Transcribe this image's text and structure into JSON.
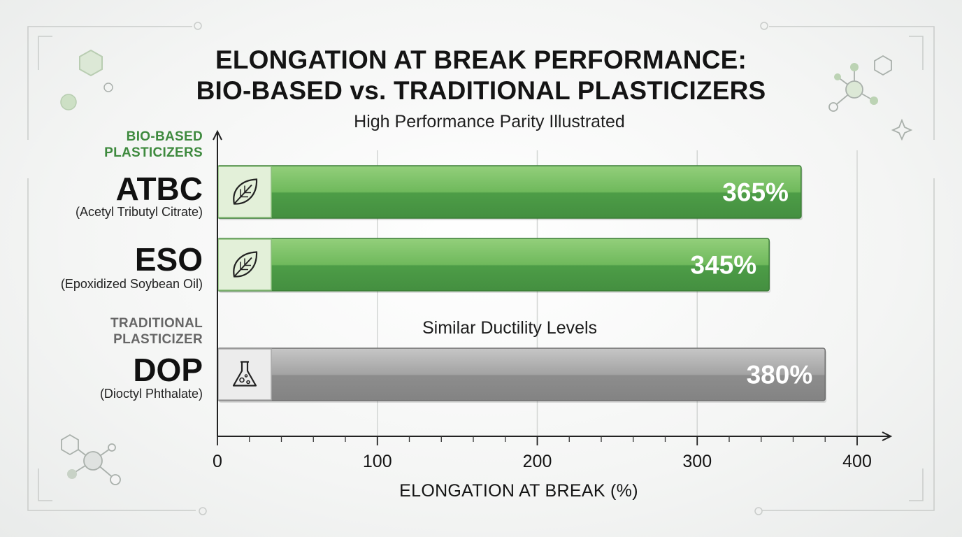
{
  "title_line1": "ELONGATION AT BREAK PERFORMANCE:",
  "title_line2": "BIO-BASED vs. TRADITIONAL PLASTICIZERS",
  "subtitle": "High Performance Parity Illustrated",
  "groups": {
    "bio": "BIO-BASED PLASTICIZERS",
    "traditional": "TRADITIONAL PLASTICIZER"
  },
  "annotation": "Similar Ductility Levels",
  "colors": {
    "bio_bar": "#4e9e48",
    "bio_bar_light": "#8fcd78",
    "trad_bar": "#8a8a8a",
    "trad_bar_light": "#c4c4c4",
    "bio_text": "#3e8a3e",
    "trad_text": "#666666"
  },
  "chart_data": {
    "type": "bar",
    "orientation": "horizontal",
    "title": "ELONGATION AT BREAK PERFORMANCE: BIO-BASED vs. TRADITIONAL PLASTICIZERS",
    "subtitle": "High Performance Parity Illustrated",
    "categories": [
      "ATBC",
      "ESO",
      "DOP"
    ],
    "category_full_names": [
      "(Acetyl Tributyl Citrate)",
      "(Epoxidized Soybean Oil)",
      "(Dioctyl Phthalate)"
    ],
    "category_groups": [
      "bio",
      "bio",
      "traditional"
    ],
    "category_icons": [
      "leaf-icon",
      "leaf-icon",
      "flask-icon"
    ],
    "values": [
      365,
      345,
      380
    ],
    "data_labels": [
      "365%",
      "345%",
      "380%"
    ],
    "xlabel": "ELONGATION AT BREAK (%)",
    "ylabel": "",
    "xlim": [
      0,
      400
    ],
    "xticks": [
      0,
      100,
      200,
      300,
      400
    ],
    "grid": true
  }
}
